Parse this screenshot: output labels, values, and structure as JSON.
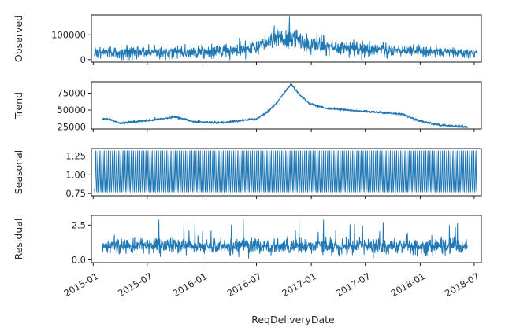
{
  "chart_data": {
    "type": "line",
    "layout": "seasonal-decomposition (4 stacked panels, shared x-axis)",
    "line_color": "#1f77b4",
    "x_axis": {
      "label": "ReqDeliveryDate",
      "range": [
        "2014-12-26",
        "2018-07-25"
      ],
      "ticks": [
        "2015-01",
        "2015-07",
        "2016-01",
        "2016-07",
        "2017-01",
        "2017-07",
        "2018-01",
        "2018-07"
      ],
      "tick_labels_rotated": true
    },
    "panels": [
      {
        "key": "observed",
        "ylabel": "Observed",
        "ylim": [
          -10000,
          180000
        ],
        "yticks": [
          0,
          100000
        ],
        "ytick_labels": [
          "0",
          "100000"
        ],
        "data_start": "2015-01-05",
        "data_end": "2018-07-10",
        "approx_profile": [
          [
            "2015-01",
            30000
          ],
          [
            "2015-07",
            28000
          ],
          [
            "2016-01",
            30000
          ],
          [
            "2016-04",
            35000
          ],
          [
            "2016-07",
            50000
          ],
          [
            "2016-10",
            95000
          ],
          [
            "2017-01",
            60000
          ],
          [
            "2017-07",
            42000
          ],
          [
            "2018-01",
            35000
          ],
          [
            "2018-07",
            25000
          ]
        ],
        "approx_spread": [
          [
            "2015-01",
            20000
          ],
          [
            "2016-07",
            28000
          ],
          [
            "2016-10",
            40000
          ],
          [
            "2017-07",
            22000
          ],
          [
            "2018-07",
            15000
          ]
        ],
        "peak": {
          "date": "2016-10-20",
          "value": 175000
        }
      },
      {
        "key": "trend",
        "ylabel": "Trend",
        "ylim": [
          22000,
          92000
        ],
        "yticks": [
          25000,
          50000,
          75000
        ],
        "ytick_labels": [
          "25000",
          "50000",
          "75000"
        ],
        "data_start": "2015-02-01",
        "data_end": "2018-06-08",
        "approx_profile": [
          [
            "2015-02-01",
            37000
          ],
          [
            "2015-03-01",
            36000
          ],
          [
            "2015-04-01",
            30000
          ],
          [
            "2015-05-01",
            32000
          ],
          [
            "2015-08-01",
            36000
          ],
          [
            "2015-10-01",
            40000
          ],
          [
            "2015-12-01",
            33000
          ],
          [
            "2016-03-01",
            31000
          ],
          [
            "2016-05-01",
            34000
          ],
          [
            "2016-07-01",
            37000
          ],
          [
            "2016-08-15",
            50000
          ],
          [
            "2016-09-15",
            65000
          ],
          [
            "2016-10-10",
            80000
          ],
          [
            "2016-10-25",
            88000
          ],
          [
            "2016-11-25",
            72000
          ],
          [
            "2016-12-25",
            60000
          ],
          [
            "2017-02-15",
            53000
          ],
          [
            "2017-06-01",
            49000
          ],
          [
            "2017-09-01",
            46000
          ],
          [
            "2017-11-01",
            44000
          ],
          [
            "2018-01-01",
            34000
          ],
          [
            "2018-03-01",
            28000
          ],
          [
            "2018-06-08",
            25000
          ]
        ],
        "noise_amplitude": 1500
      },
      {
        "key": "seasonal",
        "ylabel": "Seasonal",
        "ylim": [
          0.72,
          1.35
        ],
        "yticks": [
          0.75,
          1.0,
          1.25
        ],
        "ytick_labels": [
          "0.75",
          "1.00",
          "1.25"
        ],
        "data_start": "2015-01-05",
        "data_end": "2018-07-10",
        "range": [
          0.76,
          1.33
        ],
        "pattern": "repeating weekly cycle"
      },
      {
        "key": "residual",
        "ylabel": "Residual",
        "ylim": [
          -0.2,
          3.2
        ],
        "yticks": [
          0.0,
          2.5
        ],
        "ytick_labels": [
          "0.0",
          "2.5"
        ],
        "data_start": "2015-02-01",
        "data_end": "2018-06-08",
        "baseline": 1.0,
        "typical_spread": 0.5,
        "range": [
          0.0,
          3.0
        ]
      }
    ]
  }
}
